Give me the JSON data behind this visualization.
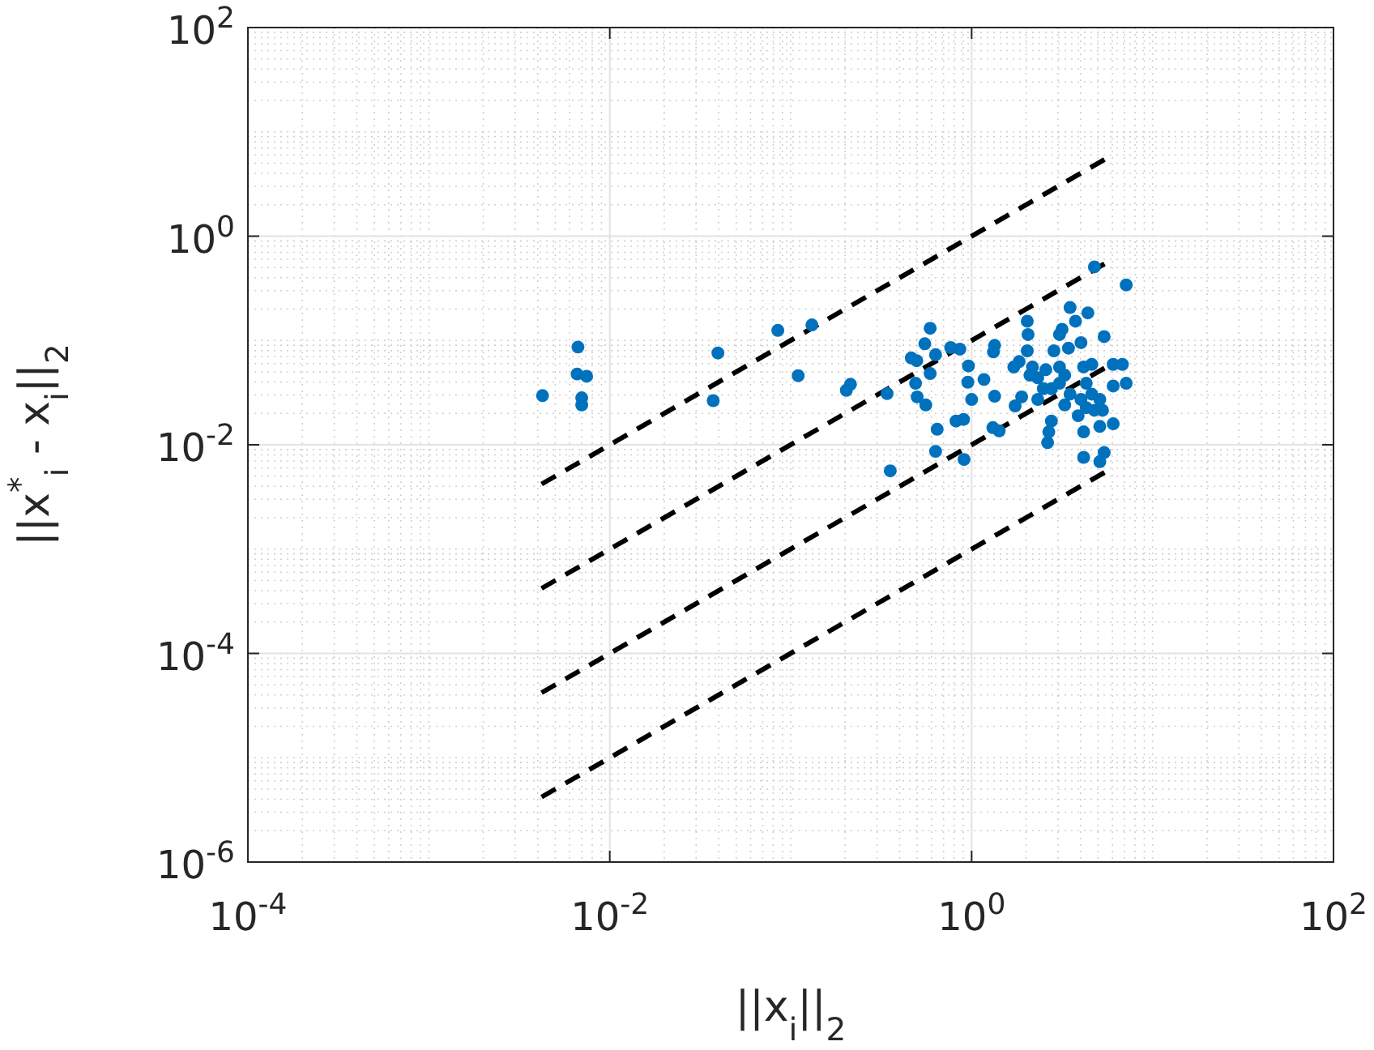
{
  "chart_data": {
    "type": "scatter",
    "xlabel": "||x$_{i}$||$_{2}$",
    "ylabel": "||x$^{*}$$_{i}$ - x$_{i}$||$_{2}$",
    "log": "xy",
    "grid": true,
    "marker": "circle",
    "xlim": [
      0.0001,
      100
    ],
    "ylim": [
      1e-06,
      100
    ],
    "xticks": [
      {
        "value": 0.0001,
        "label": "10$^{-4}$"
      },
      {
        "value": 0.01,
        "label": "10$^{-2}$"
      },
      {
        "value": 1,
        "label": "10$^{0}$"
      },
      {
        "value": 100,
        "label": "10$^{2}$"
      }
    ],
    "yticks": [
      {
        "value": 1e-06,
        "label": "10$^{-6}$"
      },
      {
        "value": 0.0001,
        "label": "10$^{-4}$"
      },
      {
        "value": 0.01,
        "label": "10$^{-2}$"
      },
      {
        "value": 1,
        "label": "10$^{0}$"
      },
      {
        "value": 100,
        "label": "10$^{2}$"
      }
    ],
    "series": [
      {
        "type": "line",
        "color": "#000000",
        "line_style": "dashed",
        "marker": "none",
        "x": [
          0.0042,
          5.6
        ],
        "values": [
          0.0042,
          5.6
        ]
      },
      {
        "type": "line",
        "color": "#000000",
        "line_style": "dashed",
        "marker": "none",
        "x": [
          0.0042,
          5.6
        ],
        "values": [
          0.00042,
          0.56
        ]
      },
      {
        "type": "line",
        "color": "#000000",
        "line_style": "dashed",
        "marker": "none",
        "x": [
          0.0042,
          5.6
        ],
        "values": [
          4.2e-05,
          0.056
        ]
      },
      {
        "type": "line",
        "color": "#000000",
        "line_style": "dashed",
        "marker": "none",
        "x": [
          0.0042,
          5.6
        ],
        "values": [
          4.2e-06,
          0.0056
        ]
      },
      {
        "color": "#0072bd",
        "x": [
          0.00425,
          0.00667,
          0.0066,
          0.00745,
          0.007,
          0.007,
          0.0396,
          0.0373,
          0.0849,
          0.131,
          0.11,
          0.203,
          0.214,
          0.341,
          0.355,
          0.59,
          0.551,
          0.464,
          0.497,
          0.632,
          0.766,
          0.861,
          0.59,
          0.49,
          0.5,
          0.558,
          0.645,
          0.632,
          0.82,
          0.902,
          0.908,
          0.96,
          0.953,
          1.0,
          1.17,
          1.34,
          1.32,
          1.34,
          1.31,
          1.42,
          2.03,
          2.05,
          1.71,
          1.83,
          1.74,
          1.89,
          2.1,
          2.32,
          2.49,
          2.32,
          2.76,
          2.67,
          2.63,
          3.06,
          3.16,
          2.85,
          3.5,
          3.75,
          4.39,
          3.43,
          4.02,
          4.16,
          3.27,
          3.06,
          3.5,
          3.27,
          4.3,
          4.61,
          4.77,
          3.88,
          4.16,
          4.16,
          5.11,
          5.4,
          5.11,
          6.06,
          5.29,
          5.11,
          4.77,
          7.15,
          5.4,
          6.06,
          6.81,
          7.15,
          6.06,
          4.61,
          2.17,
          2.57,
          3.06,
          2.03,
          2.76,
          4.02,
          4.3
        ],
        "values": [
          0.0296,
          0.0865,
          0.0477,
          0.0454,
          0.0282,
          0.0241,
          0.0759,
          0.0265,
          0.125,
          0.141,
          0.046,
          0.0333,
          0.038,
          0.031,
          0.00562,
          0.131,
          0.093,
          0.068,
          0.064,
          0.073,
          0.0855,
          0.0826,
          0.0482,
          0.0389,
          0.0288,
          0.0241,
          0.0141,
          0.00865,
          0.0169,
          0.0175,
          0.00723,
          0.057,
          0.0398,
          0.0272,
          0.0423,
          0.0897,
          0.0778,
          0.0292,
          0.0146,
          0.0136,
          0.153,
          0.114,
          0.0556,
          0.0627,
          0.0236,
          0.0288,
          0.0465,
          0.0439,
          0.0345,
          0.0272,
          0.0169,
          0.0133,
          0.0105,
          0.114,
          0.128,
          0.0796,
          0.207,
          0.153,
          0.184,
          0.0845,
          0.0953,
          0.0557,
          0.0465,
          0.0389,
          0.0306,
          0.0241,
          0.0389,
          0.0306,
          0.0214,
          0.019,
          0.0133,
          0.00758,
          0.00689,
          0.00843,
          0.015,
          0.0159,
          0.0214,
          0.0272,
          0.507,
          0.341,
          0.109,
          0.059,
          0.059,
          0.0389,
          0.0366,
          0.059,
          0.0556,
          0.0525,
          0.0556,
          0.0796,
          0.0345,
          0.0272,
          0.0227
        ]
      }
    ]
  }
}
